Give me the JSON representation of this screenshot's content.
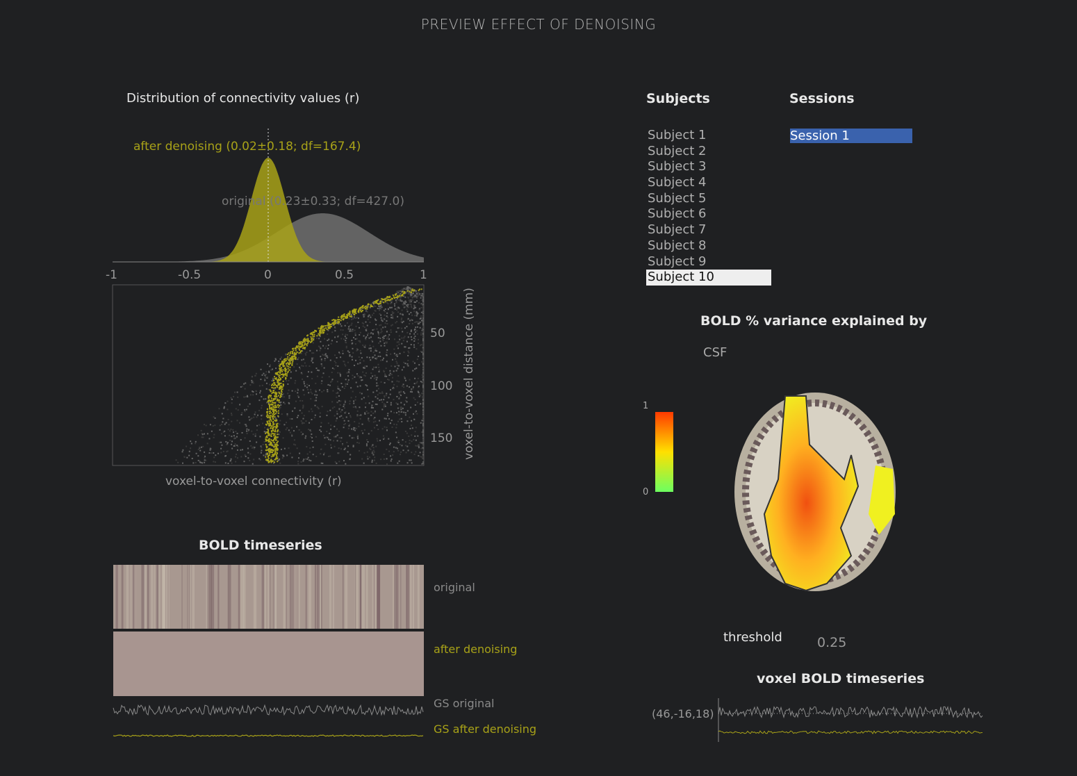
{
  "window_title": "PREVIEW EFFECT OF DENOISING",
  "distribution": {
    "title": "Distribution of connectivity values (r)",
    "after_label": "after denoising (0.02±0.18; df=167.4)",
    "original_label": "original (0.23±0.33; df=427.0)",
    "x_ticks": [
      "-1",
      "-0.5",
      "0",
      "0.5",
      "1"
    ],
    "y_ticks": [
      "50",
      "100",
      "150"
    ],
    "xlabel": "voxel-to-voxel connectivity (r)",
    "ylabel": "voxel-to-voxel distance (mm)",
    "after_mean": 0.02,
    "after_sd": 0.18,
    "original_mean": 0.23,
    "original_sd": 0.33
  },
  "bold": {
    "title": "BOLD timeseries",
    "original_label": "original",
    "after_label": "after denoising",
    "gs_original_label": "GS original",
    "gs_after_label": "GS after denoising"
  },
  "subjects": {
    "heading": "Subjects",
    "items": [
      "Subject  1",
      "Subject  2",
      "Subject  3",
      "Subject  4",
      "Subject  5",
      "Subject  6",
      "Subject  7",
      "Subject  8",
      "Subject  9",
      "Subject 10"
    ]
  },
  "sessions": {
    "heading": "Sessions",
    "items": [
      "Session 1"
    ],
    "selected": "Session 1"
  },
  "variance": {
    "title": "BOLD % variance explained by",
    "effect": "CSF",
    "colorbar_max": "1",
    "colorbar_min": "0",
    "threshold_label": "threshold",
    "threshold_value": "0.25"
  },
  "voxel": {
    "title": "voxel BOLD timeseries",
    "coordinate": "(46,-16,18)"
  },
  "colors": {
    "background": "#1f2022",
    "after": "#a8a218",
    "original": "#6a6a6a",
    "selection": "#3a62ad"
  }
}
